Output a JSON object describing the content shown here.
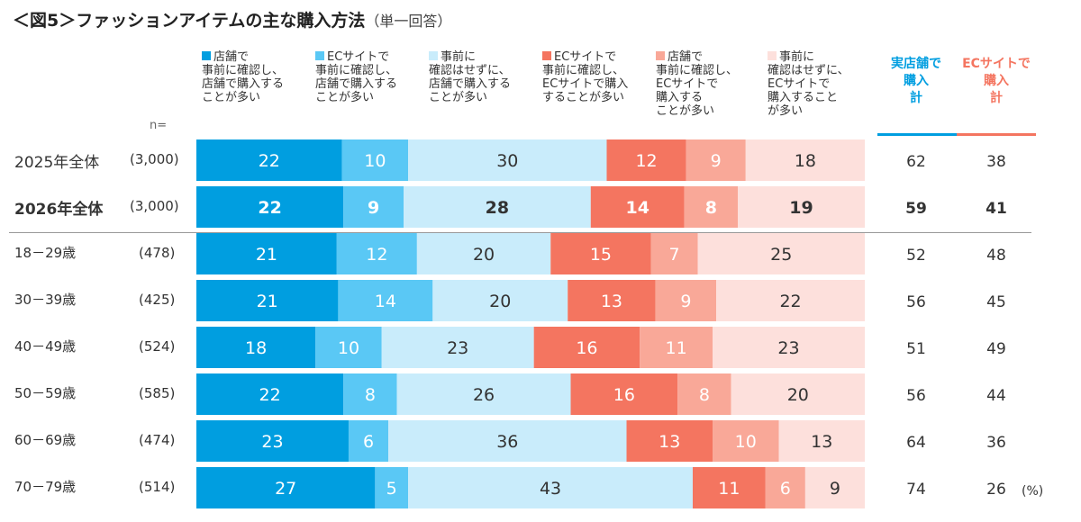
{
  "title": "＜図5＞ファッションアイテムの主な購入方法",
  "subtitle": "（単一回答）",
  "n_label": "n=",
  "unit": "(%)",
  "chart_data": {
    "type": "bar",
    "stacked": true,
    "orientation": "horizontal",
    "xlim": [
      0,
      100
    ],
    "grid": false,
    "legend_position": "top",
    "categories": [
      "2025年全体",
      "2026年全体",
      "18－29歳",
      "30－39歳",
      "40－49歳",
      "50－59歳",
      "60－69歳",
      "70－79歳"
    ],
    "n": [
      "(3,000)",
      "(3,000)",
      "(478)",
      "(425)",
      "(524)",
      "(585)",
      "(474)",
      "(514)"
    ],
    "series": [
      {
        "name_lines": [
          "店舗で",
          "事前に確認し、",
          "店舗で購入する",
          "ことが多い"
        ],
        "color": "#009ee0",
        "values": [
          22,
          22,
          21,
          21,
          18,
          22,
          23,
          27
        ]
      },
      {
        "name_lines": [
          "ECサイトで",
          "事前に確認し、",
          "店舗で購入する",
          "ことが多い"
        ],
        "color": "#5ac8f5",
        "values": [
          10,
          9,
          12,
          14,
          10,
          8,
          6,
          5
        ]
      },
      {
        "name_lines": [
          "事前に",
          "確認はせずに、",
          "店舗で購入する",
          "ことが多い"
        ],
        "color": "#c9ecfb",
        "values": [
          30,
          28,
          20,
          20,
          23,
          26,
          36,
          43
        ]
      },
      {
        "name_lines": [
          "ECサイトで",
          "事前に確認し、",
          "ECサイトで購入",
          "することが多い"
        ],
        "color": "#f47560",
        "values": [
          12,
          14,
          15,
          13,
          16,
          16,
          13,
          11
        ]
      },
      {
        "name_lines": [
          "店舗で",
          "事前に確認し、",
          "ECサイトで",
          "購入する",
          "ことが多い"
        ],
        "color": "#f9a898",
        "values": [
          9,
          8,
          7,
          9,
          11,
          8,
          10,
          6
        ]
      },
      {
        "name_lines": [
          "事前に",
          "確認はせずに、",
          "ECサイトで",
          "購入すること",
          "が多い"
        ],
        "color": "#fde0dc",
        "values": [
          18,
          19,
          25,
          22,
          23,
          20,
          13,
          9
        ]
      }
    ],
    "summary_columns": [
      {
        "label_lines": [
          "実店舗で",
          "購入",
          "計"
        ],
        "color": "#009ee0",
        "values": [
          62,
          59,
          52,
          56,
          51,
          56,
          64,
          74
        ]
      },
      {
        "label_lines": [
          "ECサイトで",
          "購入",
          "計"
        ],
        "color": "#f47560",
        "values": [
          38,
          41,
          48,
          45,
          49,
          44,
          36,
          26
        ]
      }
    ],
    "bold_rows": [
      1
    ],
    "label_colors": [
      "#ffffff",
      "#ffffff",
      "#333333",
      "#ffffff",
      "#ffffff",
      "#333333"
    ]
  }
}
